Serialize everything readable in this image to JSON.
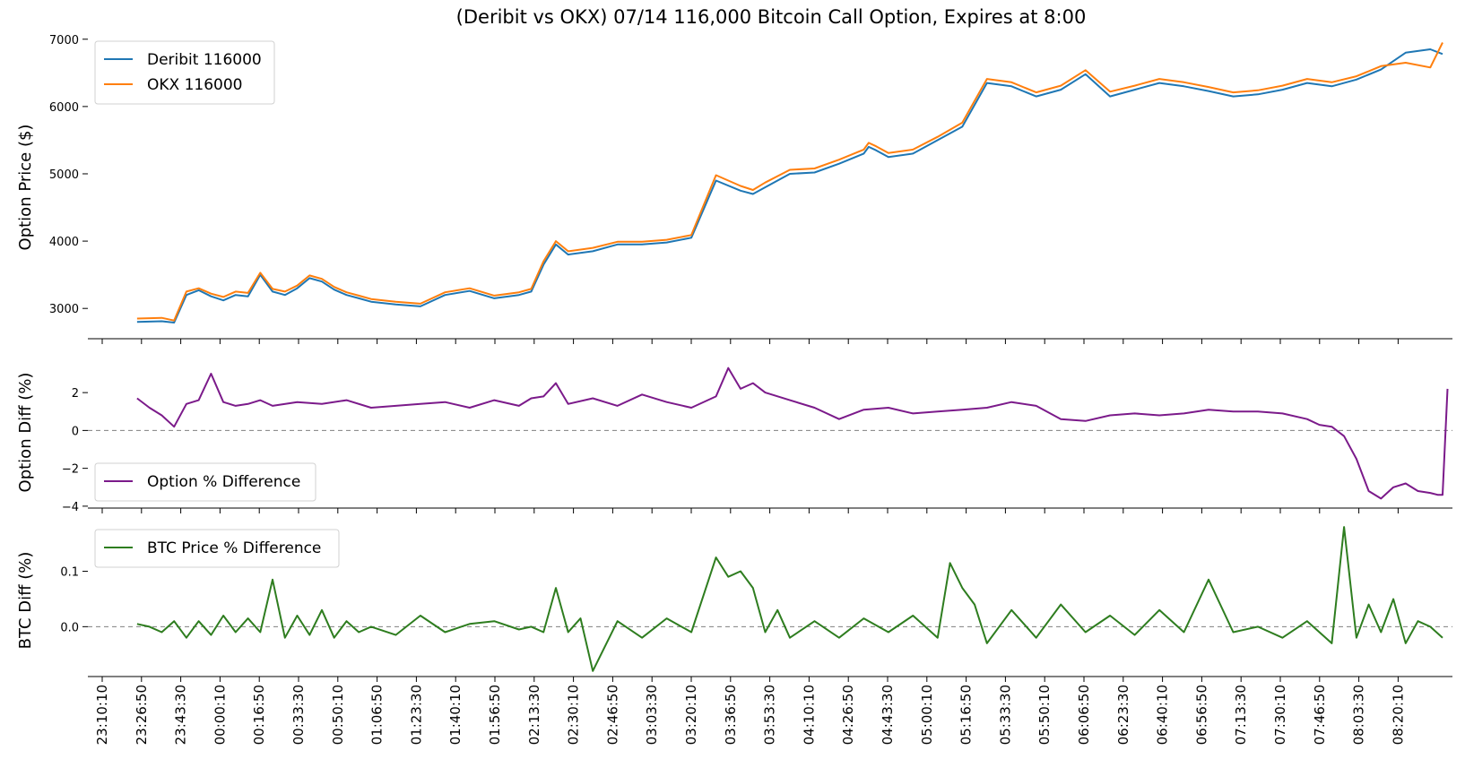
{
  "chart_data": {
    "type": "line",
    "title": "(Deribit vs OKX) 07/14 116,000 Bitcoin Call Option, Expires at 8:00",
    "x_tick_labels": [
      "23:10:10",
      "23:26:50",
      "23:43:30",
      "00:00:10",
      "00:16:50",
      "00:33:30",
      "00:50:10",
      "01:06:50",
      "01:23:30",
      "01:40:10",
      "01:56:50",
      "02:13:30",
      "02:30:10",
      "02:46:50",
      "03:03:30",
      "03:20:10",
      "03:36:50",
      "03:53:30",
      "04:10:10",
      "04:26:50",
      "04:43:30",
      "05:00:10",
      "05:16:50",
      "05:33:30",
      "05:50:10",
      "06:06:50",
      "06:23:30",
      "06:40:10",
      "06:56:50",
      "07:13:30",
      "07:30:10",
      "07:46:50",
      "08:03:30",
      "08:20:10"
    ],
    "x_range_minutes": [
      -55,
      499
    ],
    "colors": {
      "deribit": "#1f77b4",
      "okx": "#ff7f0e",
      "option_diff": "#7b1a8a",
      "btc_diff": "#2e7d1f",
      "zero_line": "#808080"
    },
    "panels": [
      {
        "id": "price",
        "ylabel": "Option Price ($)",
        "ylim": [
          2550,
          7050
        ],
        "yticks": [
          3000,
          4000,
          5000,
          6000,
          7000
        ],
        "legend_position": "top-left",
        "series": [
          {
            "name": "Deribit 116000",
            "color": "#1f77b4",
            "t": [
              -35,
              -25,
              -20,
              -15,
              -10,
              -5,
              0,
              5,
              10,
              15,
              20,
              25,
              30,
              35,
              40,
              45,
              50,
              55,
              60,
              70,
              80,
              90,
              100,
              110,
              120,
              125,
              130,
              135,
              140,
              150,
              160,
              170,
              180,
              190,
              200,
              210,
              215,
              220,
              230,
              240,
              250,
              260,
              262,
              265,
              270,
              280,
              290,
              300,
              310,
              320,
              330,
              340,
              350,
              360,
              370,
              380,
              390,
              400,
              410,
              420,
              430,
              440,
              450,
              460,
              470,
              480,
              490,
              495
            ],
            "y": [
              2800,
              2810,
              2790,
              3200,
              3270,
              3180,
              3120,
              3200,
              3180,
              3500,
              3250,
              3200,
              3300,
              3450,
              3400,
              3280,
              3200,
              3150,
              3100,
              3060,
              3030,
              3200,
              3260,
              3150,
              3200,
              3250,
              3650,
              3950,
              3800,
              3850,
              3950,
              3950,
              3980,
              4050,
              4900,
              4750,
              4700,
              4800,
              5000,
              5020,
              5150,
              5300,
              5400,
              5350,
              5250,
              5300,
              5500,
              5700,
              6350,
              6300,
              6150,
              6250,
              6480,
              6150,
              6250,
              6350,
              6300,
              6230,
              6150,
              6180,
              6250,
              6350,
              6300,
              6400,
              6550,
              6800,
              6850,
              6780
            ]
          },
          {
            "name": "OKX 116000",
            "color": "#ff7f0e",
            "t": [
              -35,
              -25,
              -20,
              -15,
              -10,
              -5,
              0,
              5,
              10,
              15,
              20,
              25,
              30,
              35,
              40,
              45,
              50,
              55,
              60,
              70,
              80,
              90,
              100,
              110,
              120,
              125,
              130,
              135,
              140,
              150,
              160,
              170,
              180,
              190,
              200,
              210,
              215,
              220,
              230,
              240,
              250,
              260,
              262,
              265,
              270,
              280,
              290,
              300,
              310,
              320,
              330,
              340,
              350,
              360,
              370,
              380,
              390,
              400,
              410,
              420,
              430,
              440,
              450,
              460,
              470,
              480,
              490,
              495
            ],
            "y": [
              2850,
              2860,
              2820,
              3250,
              3300,
              3220,
              3170,
              3250,
              3230,
              3530,
              3290,
              3250,
              3340,
              3490,
              3440,
              3320,
              3240,
              3190,
              3140,
              3100,
              3070,
              3240,
              3300,
              3190,
              3240,
              3290,
              3700,
              4000,
              3850,
              3900,
              3990,
              3990,
              4020,
              4090,
              4980,
              4820,
              4760,
              4870,
              5060,
              5080,
              5210,
              5360,
              5460,
              5410,
              5310,
              5360,
              5550,
              5760,
              6410,
              6360,
              6210,
              6310,
              6540,
              6220,
              6310,
              6410,
              6360,
              6290,
              6210,
              6240,
              6310,
              6410,
              6360,
              6450,
              6600,
              6650,
              6580,
              6950
            ]
          }
        ]
      },
      {
        "id": "option_diff",
        "ylabel": "Option Diff (%)",
        "ylim": [
          -4.1,
          3.9
        ],
        "yticks": [
          -4,
          -2,
          0,
          2
        ],
        "legend_position": "bottom-left",
        "series": [
          {
            "name": "Option % Difference",
            "color": "#7b1a8a",
            "t": [
              -35,
              -30,
              -25,
              -20,
              -15,
              -10,
              -5,
              0,
              5,
              10,
              15,
              20,
              30,
              40,
              50,
              60,
              70,
              80,
              90,
              100,
              110,
              120,
              125,
              130,
              135,
              140,
              150,
              160,
              170,
              180,
              190,
              200,
              205,
              210,
              215,
              220,
              230,
              240,
              250,
              260,
              270,
              280,
              290,
              300,
              310,
              320,
              330,
              340,
              350,
              360,
              370,
              380,
              390,
              400,
              410,
              420,
              430,
              440,
              445,
              450,
              455,
              460,
              465,
              470,
              475,
              480,
              485,
              490,
              493,
              495,
              497
            ],
            "y": [
              1.7,
              1.2,
              0.8,
              0.2,
              1.4,
              1.6,
              3.0,
              1.5,
              1.3,
              1.4,
              1.6,
              1.3,
              1.5,
              1.4,
              1.6,
              1.2,
              1.3,
              1.4,
              1.5,
              1.2,
              1.6,
              1.3,
              1.7,
              1.8,
              2.5,
              1.4,
              1.7,
              1.3,
              1.9,
              1.5,
              1.2,
              1.8,
              3.3,
              2.2,
              2.5,
              2.0,
              1.6,
              1.2,
              0.6,
              1.1,
              1.2,
              0.9,
              1.0,
              1.1,
              1.2,
              1.5,
              1.3,
              0.6,
              0.5,
              0.8,
              0.9,
              0.8,
              0.9,
              1.1,
              1.0,
              1.0,
              0.9,
              0.6,
              0.3,
              0.2,
              -0.3,
              -1.5,
              -3.2,
              -3.6,
              -3.0,
              -2.8,
              -3.2,
              -3.3,
              -3.4,
              -3.4,
              2.2
            ]
          },
          {
            "name": "",
            "color": "#7b1a8a",
            "t": [
              0
            ],
            "y": [
              0
            ]
          }
        ]
      },
      {
        "id": "btc_diff",
        "ylabel": "BTC Diff (%)",
        "ylim": [
          -0.09,
          0.185
        ],
        "yticks": [
          0.0,
          0.1
        ],
        "tick_labels": [
          "0.0",
          "0.1"
        ],
        "legend_position": "top-left",
        "series": [
          {
            "name": "BTC Price % Difference",
            "color": "#2e7d1f",
            "t": [
              -35,
              -30,
              -25,
              -20,
              -15,
              -10,
              -5,
              0,
              5,
              10,
              15,
              20,
              25,
              30,
              35,
              40,
              45,
              50,
              55,
              60,
              70,
              80,
              90,
              100,
              110,
              120,
              125,
              130,
              135,
              140,
              145,
              150,
              160,
              170,
              180,
              190,
              200,
              205,
              210,
              215,
              220,
              225,
              230,
              240,
              250,
              260,
              270,
              280,
              290,
              295,
              300,
              305,
              310,
              320,
              330,
              340,
              350,
              360,
              370,
              380,
              390,
              400,
              410,
              420,
              430,
              440,
              450,
              455,
              460,
              465,
              470,
              475,
              480,
              485,
              490,
              495
            ],
            "y": [
              0.005,
              0.0,
              -0.01,
              0.01,
              -0.02,
              0.01,
              -0.015,
              0.02,
              -0.01,
              0.015,
              -0.01,
              0.085,
              -0.02,
              0.02,
              -0.015,
              0.03,
              -0.02,
              0.01,
              -0.01,
              0.0,
              -0.015,
              0.02,
              -0.01,
              0.005,
              0.01,
              -0.005,
              0.0,
              -0.01,
              0.07,
              -0.01,
              0.015,
              -0.08,
              0.01,
              -0.02,
              0.015,
              -0.01,
              0.125,
              0.09,
              0.1,
              0.07,
              -0.01,
              0.03,
              -0.02,
              0.01,
              -0.02,
              0.015,
              -0.01,
              0.02,
              -0.02,
              0.115,
              0.07,
              0.04,
              -0.03,
              0.03,
              -0.02,
              0.04,
              -0.01,
              0.02,
              -0.015,
              0.03,
              -0.01,
              0.085,
              -0.01,
              0.0,
              -0.02,
              0.01,
              -0.03,
              0.18,
              -0.02,
              0.04,
              -0.01,
              0.05,
              -0.03,
              0.01,
              0.0,
              -0.02
            ]
          },
          {
            "name": "",
            "color": "#2e7d1f",
            "t": [
              0
            ],
            "y": [
              0
            ]
          }
        ]
      }
    ]
  }
}
